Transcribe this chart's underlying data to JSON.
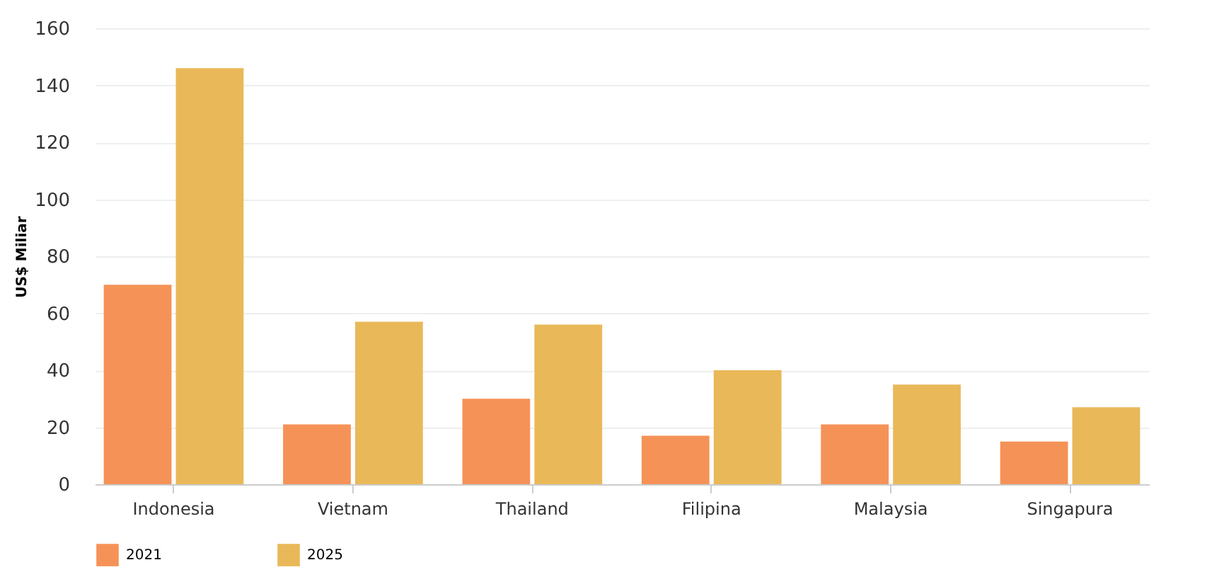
{
  "chart_data": {
    "type": "bar",
    "ylabel": "US$ Miliar",
    "categories": [
      "Indonesia",
      "Vietnam",
      "Thailand",
      "Filipina",
      "Malaysia",
      "Singapura"
    ],
    "series": [
      {
        "name": "2021",
        "color": "#f48c4e",
        "values": [
          70,
          21,
          30,
          17,
          21,
          15
        ]
      },
      {
        "name": "2025",
        "color": "#e8b44f",
        "values": [
          146,
          57,
          56,
          40,
          35,
          27
        ]
      }
    ],
    "ylim": [
      0,
      160
    ],
    "yticks": [
      0,
      20,
      40,
      60,
      80,
      100,
      120,
      140,
      160
    ],
    "grid": "y",
    "legend": "bottom"
  }
}
